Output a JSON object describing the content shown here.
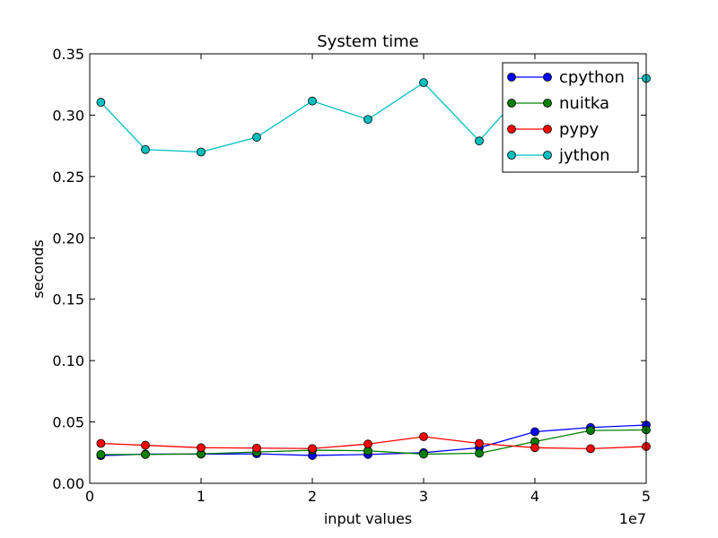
{
  "chart_data": {
    "type": "line",
    "title": "System time",
    "xlabel": "input values",
    "ylabel": "seconds",
    "x_offset_label": "1e7",
    "xlim": [
      0,
      50000000
    ],
    "ylim": [
      0,
      0.35
    ],
    "x_ticks": [
      0,
      10000000,
      20000000,
      30000000,
      40000000,
      50000000
    ],
    "x_tick_labels": [
      "0",
      "1",
      "2",
      "3",
      "4",
      "5"
    ],
    "y_ticks": [
      0,
      0.05,
      0.1,
      0.15,
      0.2,
      0.25,
      0.3,
      0.35
    ],
    "y_tick_labels": [
      "0.00",
      "0.05",
      "0.10",
      "0.15",
      "0.20",
      "0.25",
      "0.30",
      "0.35"
    ],
    "grid": false,
    "legend_position": "top-right",
    "x": [
      1000000,
      5000000,
      10000000,
      15000000,
      20000000,
      25000000,
      30000000,
      35000000,
      40000000,
      45000000,
      50000000
    ],
    "series": [
      {
        "name": "cpython",
        "color": "#0000ff",
        "values": [
          0.0225,
          0.0238,
          0.0238,
          0.024,
          0.0227,
          0.0235,
          0.025,
          0.029,
          0.042,
          0.0455,
          0.0475
        ]
      },
      {
        "name": "nuitka",
        "color": "#008000",
        "values": [
          0.0235,
          0.0235,
          0.024,
          0.0255,
          0.027,
          0.0265,
          0.0238,
          0.0245,
          0.034,
          0.043,
          0.0435
        ]
      },
      {
        "name": "pypy",
        "color": "#ff0000",
        "values": [
          0.0325,
          0.031,
          0.029,
          0.0287,
          0.0283,
          0.032,
          0.038,
          0.0325,
          0.029,
          0.0282,
          0.03
        ]
      },
      {
        "name": "jython",
        "color": "#00bfbf",
        "values": [
          0.3105,
          0.272,
          0.27,
          0.282,
          0.3115,
          0.2965,
          0.3265,
          0.279,
          0.33,
          0.33,
          0.33
        ]
      }
    ]
  }
}
